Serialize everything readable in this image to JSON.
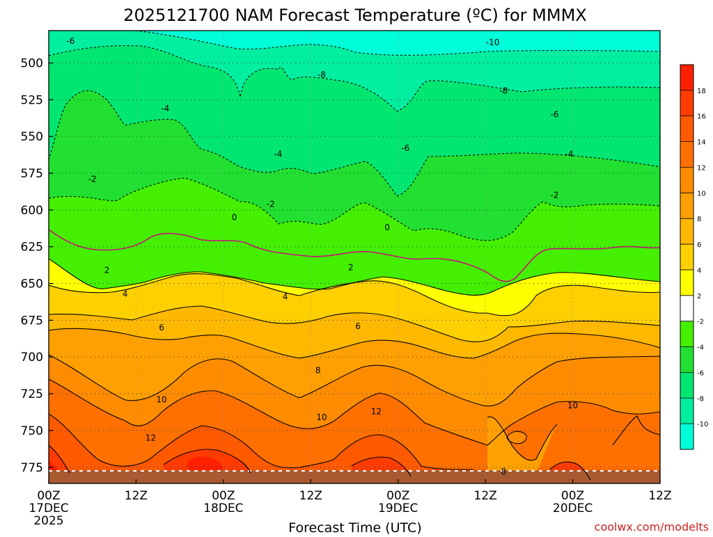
{
  "chart_data": {
    "type": "heatmap",
    "title": "2025121700 NAM Forecast Temperature (ºC) for MMMX",
    "xlabel": "Forecast Time (UTC)",
    "ylabel": "",
    "x_ticks": [
      {
        "line1": "00Z",
        "line2": "17DEC",
        "line3": "2025",
        "hour": 0
      },
      {
        "line1": "12Z",
        "line2": "",
        "line3": "",
        "hour": 12
      },
      {
        "line1": "00Z",
        "line2": "18DEC",
        "line3": "",
        "hour": 24
      },
      {
        "line1": "12Z",
        "line2": "",
        "line3": "",
        "hour": 36
      },
      {
        "line1": "00Z",
        "line2": "19DEC",
        "line3": "",
        "hour": 48
      },
      {
        "line1": "12Z",
        "line2": "",
        "line3": "",
        "hour": 60
      },
      {
        "line1": "00Z",
        "line2": "20DEC",
        "line3": "",
        "hour": 72
      },
      {
        "line1": "12Z",
        "line2": "",
        "line3": "",
        "hour": 84
      }
    ],
    "xlim_hours": [
      0,
      84
    ],
    "y_ticks": [
      "500",
      "525",
      "550",
      "575",
      "600",
      "625",
      "650",
      "675",
      "700",
      "725",
      "750",
      "775"
    ],
    "y_tick_values": [
      500,
      525,
      550,
      575,
      600,
      625,
      650,
      675,
      700,
      725,
      750,
      775
    ],
    "ylim_hpa": [
      478,
      786
    ],
    "ground_level_hpa": 779,
    "grid": true,
    "colorbar_ticks": [
      "18",
      "16",
      "14",
      "12",
      "10",
      "8",
      "6",
      "4",
      "2",
      "-2",
      "-4",
      "-6",
      "-8",
      "-10"
    ],
    "colorbar_levels": [
      18,
      16,
      14,
      12,
      10,
      8,
      6,
      4,
      2,
      -2,
      -4,
      -6,
      -8,
      -10
    ],
    "colorbar_colors": [
      "#ff2000",
      "#ff3c00",
      "#ff5a00",
      "#ff7000",
      "#ff8c00",
      "#ffa000",
      "#ffb800",
      "#ffd000",
      "#ffff00",
      "#ffffff",
      "#44f000",
      "#22e032",
      "#00e670",
      "#00eea0",
      "#00ffd8"
    ],
    "contour_labels": [
      {
        "text": "-10",
        "hour": 61,
        "hpa": 486
      },
      {
        "text": "-8",
        "hour": 37.5,
        "hpa": 508
      },
      {
        "text": "-8",
        "hour": 62.5,
        "hpa": 519
      },
      {
        "text": "-6",
        "hour": 3,
        "hpa": 485
      },
      {
        "text": "-6",
        "hour": 49,
        "hpa": 558
      },
      {
        "text": "-6",
        "hour": 69.5,
        "hpa": 535
      },
      {
        "text": "-4",
        "hour": 16,
        "hpa": 531
      },
      {
        "text": "-4",
        "hour": 31.5,
        "hpa": 562
      },
      {
        "text": "-4",
        "hour": 71.5,
        "hpa": 562
      },
      {
        "text": "-2",
        "hour": 6,
        "hpa": 579
      },
      {
        "text": "-2",
        "hour": 30.5,
        "hpa": 596
      },
      {
        "text": "-2",
        "hour": 69.5,
        "hpa": 590
      },
      {
        "text": "0",
        "hour": 25.5,
        "hpa": 605
      },
      {
        "text": "0",
        "hour": 46.5,
        "hpa": 612
      },
      {
        "text": "2",
        "hour": 8,
        "hpa": 641
      },
      {
        "text": "2",
        "hour": 41.5,
        "hpa": 639
      },
      {
        "text": "4",
        "hour": 10.5,
        "hpa": 657
      },
      {
        "text": "4",
        "hour": 32.5,
        "hpa": 659
      },
      {
        "text": "6",
        "hour": 15.5,
        "hpa": 680
      },
      {
        "text": "6",
        "hour": 42.5,
        "hpa": 679
      },
      {
        "text": "8",
        "hour": 37,
        "hpa": 709
      },
      {
        "text": "8",
        "hour": 62.5,
        "hpa": 778
      },
      {
        "text": "10",
        "hour": 15.5,
        "hpa": 729
      },
      {
        "text": "10",
        "hour": 37.5,
        "hpa": 741
      },
      {
        "text": "10",
        "hour": 72,
        "hpa": 733
      },
      {
        "text": "12",
        "hour": 14,
        "hpa": 755
      },
      {
        "text": "12",
        "hour": 45,
        "hpa": 737
      }
    ]
  },
  "credit": "coolwx.com/modelts",
  "colors": {
    "zero_line": "#c8107a",
    "ground": "#a85a30",
    "frame": "#000000"
  }
}
